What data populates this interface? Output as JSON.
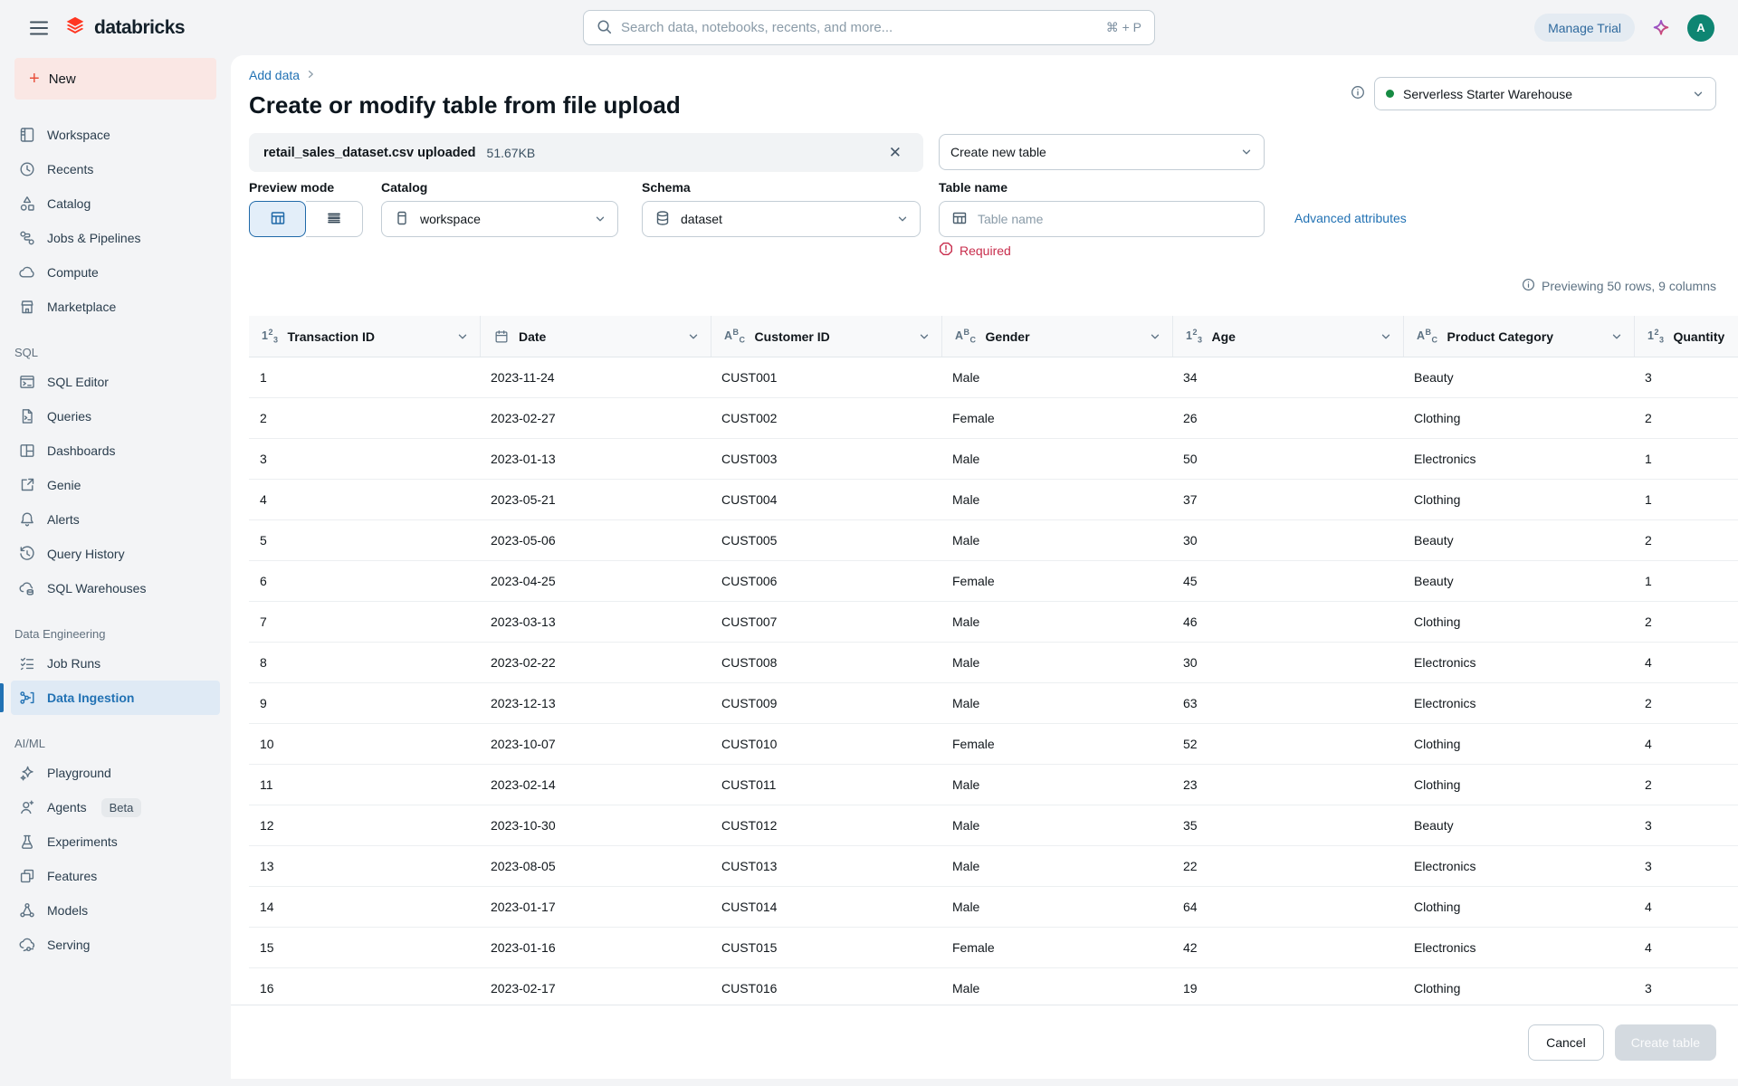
{
  "topbar": {
    "logo_text": "databricks",
    "search_placeholder": "Search data, notebooks, recents, and more...",
    "search_shortcut": "⌘ + P",
    "manage_trial_label": "Manage Trial",
    "avatar_initial": "A"
  },
  "sidebar": {
    "new_button_label": "New",
    "sections": [
      {
        "header": "",
        "items": [
          {
            "label": "Workspace",
            "icon": "workspace"
          },
          {
            "label": "Recents",
            "icon": "recents"
          },
          {
            "label": "Catalog",
            "icon": "catalog"
          },
          {
            "label": "Jobs & Pipelines",
            "icon": "jobs-pipelines"
          },
          {
            "label": "Compute",
            "icon": "compute"
          },
          {
            "label": "Marketplace",
            "icon": "marketplace"
          }
        ]
      },
      {
        "header": "SQL",
        "items": [
          {
            "label": "SQL Editor",
            "icon": "sql-editor"
          },
          {
            "label": "Queries",
            "icon": "queries"
          },
          {
            "label": "Dashboards",
            "icon": "dashboards"
          },
          {
            "label": "Genie",
            "icon": "genie"
          },
          {
            "label": "Alerts",
            "icon": "alerts"
          },
          {
            "label": "Query History",
            "icon": "query-history"
          },
          {
            "label": "SQL Warehouses",
            "icon": "sql-warehouses"
          }
        ]
      },
      {
        "header": "Data Engineering",
        "items": [
          {
            "label": "Job Runs",
            "icon": "job-runs"
          },
          {
            "label": "Data Ingestion",
            "icon": "data-ingestion",
            "active": true
          }
        ]
      },
      {
        "header": "AI/ML",
        "items": [
          {
            "label": "Playground",
            "icon": "playground"
          },
          {
            "label": "Agents",
            "icon": "agents",
            "badge": "Beta"
          },
          {
            "label": "Experiments",
            "icon": "experiments"
          },
          {
            "label": "Features",
            "icon": "features"
          },
          {
            "label": "Models",
            "icon": "models"
          },
          {
            "label": "Serving",
            "icon": "serving"
          }
        ]
      }
    ]
  },
  "main": {
    "breadcrumb": "Add data",
    "title": "Create or modify table from file upload",
    "file_chip": {
      "name": "retail_sales_dataset.csv uploaded",
      "size": "51.67KB"
    },
    "mode_select_value": "Create new table",
    "warehouse_select_value": "Serverless Starter Warehouse",
    "form": {
      "preview_mode_label": "Preview mode",
      "catalog_label": "Catalog",
      "catalog_value": "workspace",
      "schema_label": "Schema",
      "schema_value": "dataset",
      "table_name_label": "Table name",
      "table_name_placeholder": "Table name",
      "required_message": "Required",
      "advanced_attributes_label": "Advanced attributes"
    },
    "preview_summary": "Previewing 50 rows, 9 columns",
    "table": {
      "columns": [
        {
          "label": "Transaction ID",
          "type": "number"
        },
        {
          "label": "Date",
          "type": "date"
        },
        {
          "label": "Customer ID",
          "type": "string"
        },
        {
          "label": "Gender",
          "type": "string"
        },
        {
          "label": "Age",
          "type": "number"
        },
        {
          "label": "Product Category",
          "type": "string"
        },
        {
          "label": "Quantity",
          "type": "number"
        }
      ],
      "rows": [
        [
          "1",
          "2023-11-24",
          "CUST001",
          "Male",
          "34",
          "Beauty",
          "3"
        ],
        [
          "2",
          "2023-02-27",
          "CUST002",
          "Female",
          "26",
          "Clothing",
          "2"
        ],
        [
          "3",
          "2023-01-13",
          "CUST003",
          "Male",
          "50",
          "Electronics",
          "1"
        ],
        [
          "4",
          "2023-05-21",
          "CUST004",
          "Male",
          "37",
          "Clothing",
          "1"
        ],
        [
          "5",
          "2023-05-06",
          "CUST005",
          "Male",
          "30",
          "Beauty",
          "2"
        ],
        [
          "6",
          "2023-04-25",
          "CUST006",
          "Female",
          "45",
          "Beauty",
          "1"
        ],
        [
          "7",
          "2023-03-13",
          "CUST007",
          "Male",
          "46",
          "Clothing",
          "2"
        ],
        [
          "8",
          "2023-02-22",
          "CUST008",
          "Male",
          "30",
          "Electronics",
          "4"
        ],
        [
          "9",
          "2023-12-13",
          "CUST009",
          "Male",
          "63",
          "Electronics",
          "2"
        ],
        [
          "10",
          "2023-10-07",
          "CUST010",
          "Female",
          "52",
          "Clothing",
          "4"
        ],
        [
          "11",
          "2023-02-14",
          "CUST011",
          "Male",
          "23",
          "Clothing",
          "2"
        ],
        [
          "12",
          "2023-10-30",
          "CUST012",
          "Male",
          "35",
          "Beauty",
          "3"
        ],
        [
          "13",
          "2023-08-05",
          "CUST013",
          "Male",
          "22",
          "Electronics",
          "3"
        ],
        [
          "14",
          "2023-01-17",
          "CUST014",
          "Male",
          "64",
          "Clothing",
          "4"
        ],
        [
          "15",
          "2023-01-16",
          "CUST015",
          "Female",
          "42",
          "Electronics",
          "4"
        ],
        [
          "16",
          "2023-02-17",
          "CUST016",
          "Male",
          "19",
          "Clothing",
          "3"
        ]
      ]
    },
    "footer": {
      "cancel_label": "Cancel",
      "create_label": "Create table"
    }
  },
  "colors": {
    "brand_red": "#FF3621",
    "link_blue": "#2272B4",
    "error_red": "#C82D4C",
    "avatar_green": "#0E8572",
    "warehouse_status_green": "#168B43"
  }
}
